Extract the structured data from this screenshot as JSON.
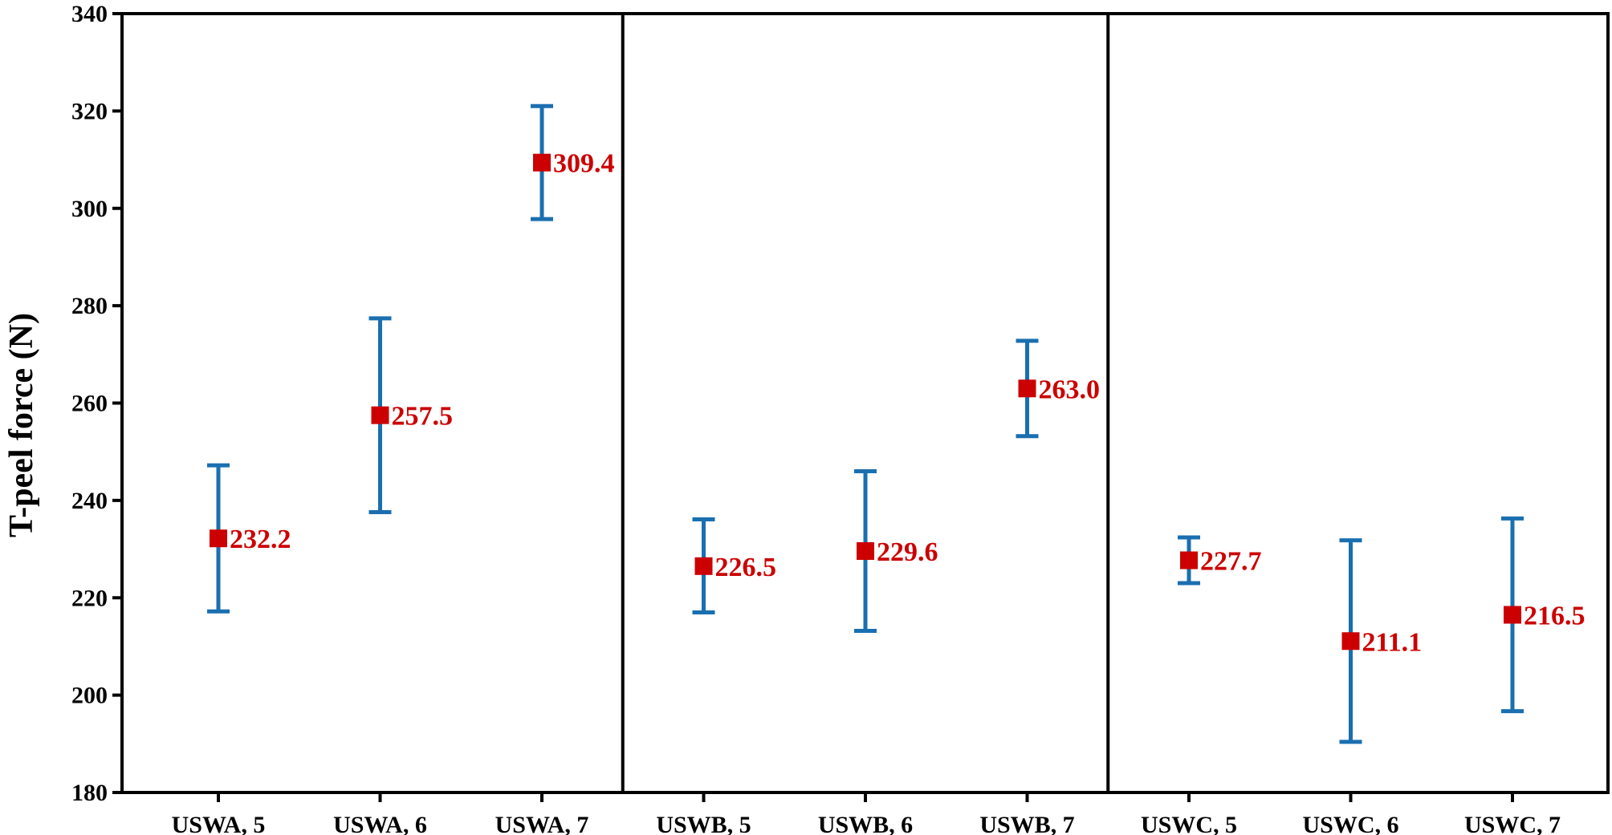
{
  "chart_data": {
    "type": "scatter",
    "title": "",
    "xlabel": "",
    "ylabel": "T-peel force (N)",
    "ylim": [
      180,
      340
    ],
    "yticks": [
      180,
      200,
      220,
      240,
      260,
      280,
      300,
      320,
      340
    ],
    "categories": [
      "USWA, 5",
      "USWA, 6",
      "USWA, 7",
      "USWB, 5",
      "USWB, 6",
      "USWB, 7",
      "USWC, 5",
      "USWC, 6",
      "USWC, 7"
    ],
    "values": [
      232.2,
      257.5,
      309.4,
      226.5,
      229.6,
      263.0,
      227.7,
      211.1,
      216.5
    ],
    "value_labels": [
      "232.2",
      "257.5",
      "309.4",
      "226.5",
      "229.6",
      "263.0",
      "227.7",
      "211.1",
      "216.5"
    ],
    "error_low": [
      217.2,
      237.6,
      297.8,
      217.0,
      213.2,
      253.2,
      223.0,
      190.4,
      196.7
    ],
    "error_high": [
      247.2,
      277.4,
      321.0,
      236.1,
      246.0,
      272.8,
      232.4,
      231.8,
      236.3
    ],
    "group_separators_after": [
      3,
      6
    ],
    "grid": false,
    "legend": "none",
    "colors": {
      "marker": "#cc0000",
      "error_bar": "#1a6fb0",
      "label": "#cc0000",
      "axis": "#000000"
    }
  }
}
